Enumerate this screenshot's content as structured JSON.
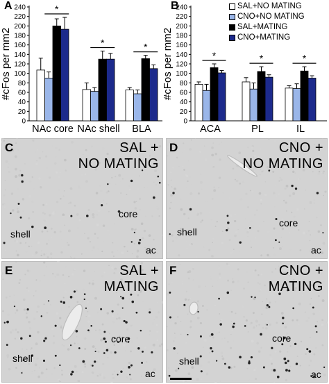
{
  "panels": {
    "A": "A",
    "B": "B",
    "C": "C",
    "D": "D",
    "E": "E",
    "F": "F"
  },
  "colors": {
    "sal_no_mating": "#ffffff",
    "cno_no_mating": "#9ab6e9",
    "sal_mating": "#000000",
    "cno_mating": "#1c2a8c"
  },
  "legend": [
    {
      "label": "SAL+NO MATING",
      "color": "#ffffff"
    },
    {
      "label": "CNO+NO MATING",
      "color": "#9ab6e9"
    },
    {
      "label": "SAL+MATING",
      "color": "#000000"
    },
    {
      "label": "CNO+MATING",
      "color": "#1c2a8c"
    }
  ],
  "chart_data": [
    {
      "type": "bar",
      "panel": "A",
      "ylabel": "#cFos per mm2",
      "ylim": [
        0,
        240
      ],
      "yticks": [
        0,
        20,
        40,
        60,
        80,
        100,
        120,
        140,
        160,
        180,
        200,
        220,
        240
      ],
      "categories": [
        "NAc core",
        "NAc shell",
        "BLA"
      ],
      "significance": [
        "*",
        "*",
        "*"
      ],
      "series": [
        {
          "name": "SAL+NO MATING",
          "values": [
            107,
            66,
            65
          ],
          "errors": [
            25,
            14,
            5
          ]
        },
        {
          "name": "CNO+NO MATING",
          "values": [
            90,
            62,
            57
          ],
          "errors": [
            13,
            8,
            8
          ]
        },
        {
          "name": "SAL+MATING",
          "values": [
            200,
            130,
            131
          ],
          "errors": [
            15,
            17,
            7
          ]
        },
        {
          "name": "CNO+MATING",
          "values": [
            193,
            130,
            110
          ],
          "errors": [
            25,
            12,
            8
          ]
        }
      ]
    },
    {
      "type": "bar",
      "panel": "B",
      "ylabel": "#cFos per mm2",
      "ylim": [
        0,
        240
      ],
      "yticks": [
        0,
        20,
        40,
        60,
        80,
        100,
        120,
        140,
        160,
        180,
        200,
        220,
        240
      ],
      "categories": [
        "ACA",
        "PL",
        "IL"
      ],
      "significance": [
        "*",
        "*",
        "*"
      ],
      "series": [
        {
          "name": "SAL+NO MATING",
          "values": [
            77,
            82,
            69
          ],
          "errors": [
            5,
            9,
            5
          ]
        },
        {
          "name": "CNO+NO MATING",
          "values": [
            64,
            67,
            68
          ],
          "errors": [
            13,
            13,
            10
          ]
        },
        {
          "name": "SAL+MATING",
          "values": [
            112,
            104,
            105
          ],
          "errors": [
            8,
            10,
            9
          ]
        },
        {
          "name": "CNO+MATING",
          "values": [
            101,
            92,
            90
          ],
          "errors": [
            5,
            5,
            5
          ]
        }
      ]
    }
  ],
  "images": [
    {
      "letter": "C",
      "condition": [
        "SAL +",
        "NO MATING"
      ],
      "labels": {
        "core": "core",
        "shell": "shell",
        "ac": "ac"
      }
    },
    {
      "letter": "D",
      "condition": [
        "CNO +",
        "NO MATING"
      ],
      "labels": {
        "core": "core",
        "shell": "shell",
        "ac": "ac"
      }
    },
    {
      "letter": "E",
      "condition": [
        "SAL +",
        "MATING"
      ],
      "labels": {
        "core": "core",
        "shell": "shell",
        "ac": "ac"
      }
    },
    {
      "letter": "F",
      "condition": [
        "CNO +",
        "MATING"
      ],
      "labels": {
        "core": "core",
        "shell": "shell",
        "ac": "ac"
      }
    }
  ]
}
